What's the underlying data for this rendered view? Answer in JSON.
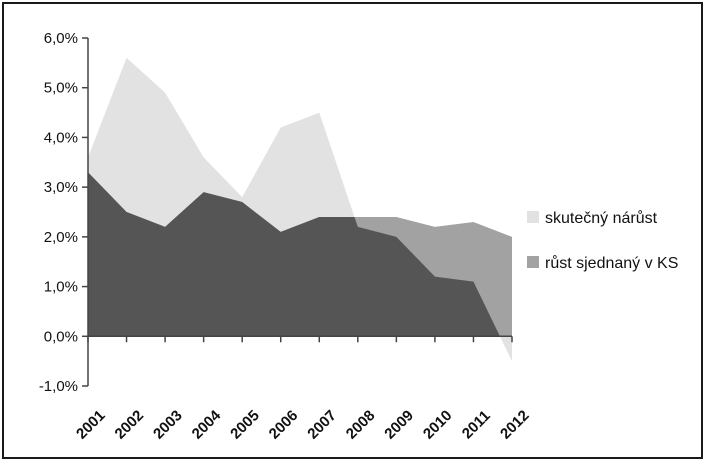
{
  "chart_data": {
    "type": "area",
    "categories": [
      "2001",
      "2002",
      "2003",
      "2004",
      "2005",
      "2006",
      "2007",
      "2008",
      "2009",
      "2010",
      "2011",
      "2012"
    ],
    "series": [
      {
        "name": "skutečný nárůst",
        "values": [
          3.6,
          5.6,
          4.9,
          3.6,
          2.8,
          4.2,
          4.5,
          2.2,
          2.0,
          1.2,
          1.1,
          -0.5
        ],
        "color": "#e2e2e2"
      },
      {
        "name": "růst sjednaný v KS",
        "values": [
          3.3,
          2.5,
          2.2,
          2.9,
          2.7,
          2.1,
          2.4,
          2.4,
          2.4,
          2.2,
          2.3,
          2.0
        ],
        "color": "#a2a2a2"
      }
    ],
    "overlap_color": "#555555",
    "ylim": [
      -1.0,
      6.0
    ],
    "yticks": [
      "6,0%",
      "5,0%",
      "4,0%",
      "3,0%",
      "2,0%",
      "1,0%",
      "0,0%",
      "-1,0%"
    ],
    "legend_position": "right",
    "grid": false
  }
}
